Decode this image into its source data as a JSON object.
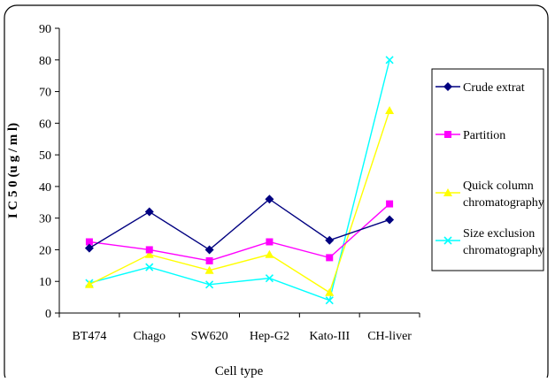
{
  "chart_data": {
    "type": "line",
    "xlabel": "Cell type",
    "ylabel": "I C 5 0  (u g / m l)",
    "categories": [
      "BT474",
      "Chago",
      "SW620",
      "Hep-G2",
      "Kato-III",
      "CH-liver"
    ],
    "ylim": [
      0,
      90
    ],
    "yticks": [
      "0",
      "10",
      "20",
      "30",
      "40",
      "50",
      "60",
      "70",
      "80",
      "90"
    ],
    "grid": false,
    "legend_position": "right",
    "series": [
      {
        "name": "Crude extrat",
        "color": "#000080",
        "marker": "diamond",
        "values": [
          20.5,
          32,
          20,
          36,
          23,
          29.5
        ]
      },
      {
        "name": "Partition",
        "color": "#ff00ff",
        "marker": "square",
        "values": [
          22.5,
          20,
          16.5,
          22.5,
          17.5,
          34.5
        ]
      },
      {
        "name": "Quick column chromatography",
        "color": "#ffff00",
        "marker": "triangle",
        "values": [
          9,
          18.5,
          13.5,
          18.5,
          6.5,
          64
        ]
      },
      {
        "name": "Size exclusion chromatography",
        "color": "#00ffff",
        "marker": "x",
        "values": [
          9.5,
          14.5,
          9,
          11,
          4,
          80
        ]
      }
    ]
  }
}
